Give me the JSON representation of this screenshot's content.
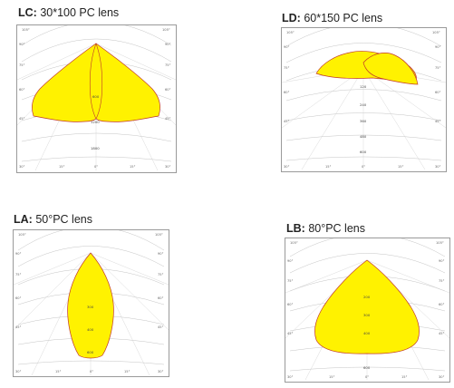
{
  "panels": {
    "lc": {
      "code": "LC:",
      "name": "30*100 PC lens",
      "angles_top": [
        "105°",
        "105°"
      ],
      "angles_left": [
        "90°",
        "75°",
        "60°",
        "45°",
        "30°"
      ],
      "angles_right": [
        "90°",
        "75°",
        "60°",
        "45°",
        "30°"
      ],
      "angles_bottom": [
        "15°",
        "0°",
        "15°"
      ],
      "values": [
        "600",
        "1200",
        "1800"
      ]
    },
    "ld": {
      "code": "LD:",
      "name": "60*150 PC lens",
      "angles_top": [
        "105°",
        "105°"
      ],
      "angles_left": [
        "90°",
        "75°",
        "60°",
        "45°",
        "30°"
      ],
      "angles_right": [
        "90°",
        "75°",
        "60°",
        "45°",
        "30°"
      ],
      "angles_bottom": [
        "15°",
        "0°",
        "15°"
      ],
      "values": [
        "120",
        "240",
        "360",
        "480",
        "600"
      ]
    },
    "la": {
      "code": "LA:",
      "name": "50°PC lens",
      "angles_top": [
        "105°",
        "105°"
      ],
      "angles_left": [
        "90°",
        "75°",
        "60°",
        "45°",
        "30°"
      ],
      "angles_right": [
        "90°",
        "75°",
        "60°",
        "45°",
        "30°"
      ],
      "angles_bottom": [
        "15°",
        "0°",
        "15°"
      ],
      "values": [
        "300",
        "400",
        "600"
      ]
    },
    "lb": {
      "code": "LB:",
      "name": "80°PC lens",
      "angles_top": [
        "105°",
        "105°"
      ],
      "angles_left": [
        "90°",
        "75°",
        "60°",
        "45°",
        "30°"
      ],
      "angles_right": [
        "90°",
        "75°",
        "60°",
        "45°",
        "30°"
      ],
      "angles_bottom": [
        "15°",
        "0°",
        "15°"
      ],
      "values": [
        "200",
        "300",
        "400",
        "600"
      ]
    }
  }
}
